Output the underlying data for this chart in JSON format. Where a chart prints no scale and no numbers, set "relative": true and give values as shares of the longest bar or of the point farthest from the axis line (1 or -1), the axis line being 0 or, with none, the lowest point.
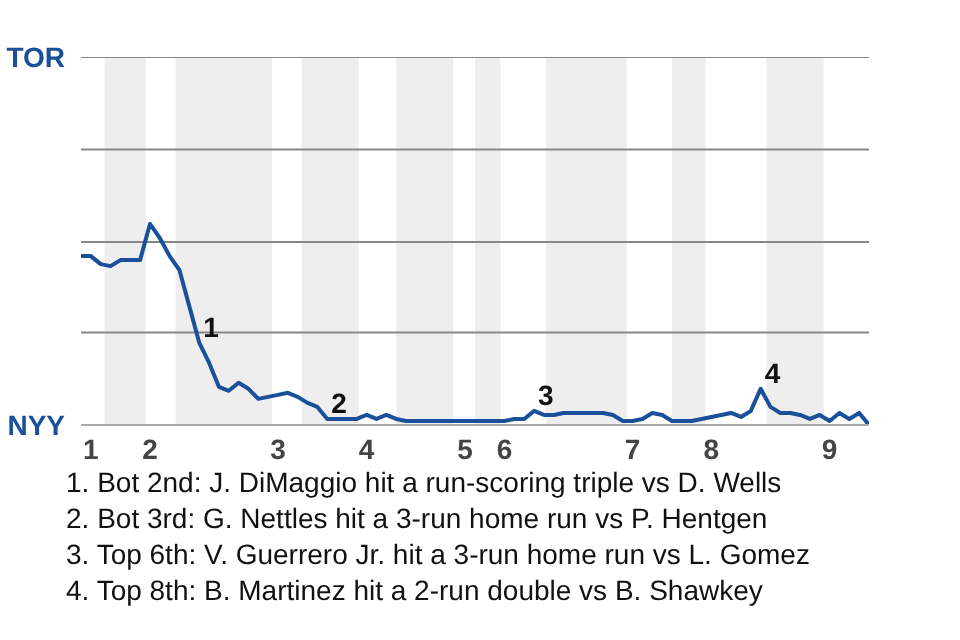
{
  "chart_data": {
    "type": "line",
    "relative": true,
    "categories": [
      null,
      "1",
      null,
      null,
      null,
      null,
      null,
      "2",
      null,
      null,
      null,
      null,
      null,
      null,
      null,
      null,
      null,
      null,
      null,
      null,
      "3",
      null,
      null,
      null,
      null,
      null,
      null,
      null,
      null,
      "4",
      null,
      null,
      null,
      null,
      null,
      null,
      null,
      null,
      null,
      "5",
      null,
      null,
      null,
      "6",
      null,
      null,
      null,
      null,
      null,
      null,
      null,
      null,
      null,
      null,
      null,
      null,
      "7",
      null,
      null,
      null,
      null,
      null,
      null,
      null,
      "8",
      null,
      null,
      null,
      null,
      null,
      null,
      null,
      null,
      null,
      null,
      null,
      "9",
      null,
      null,
      null,
      null
    ],
    "series": [
      {
        "color": "#1a4f99",
        "values": [
          0.84,
          0.84,
          0.8,
          0.79,
          0.82,
          0.82,
          0.82,
          1.0,
          0.93,
          0.84,
          0.77,
          0.59,
          0.41,
          0.31,
          0.19,
          0.17,
          0.21,
          0.18,
          0.13,
          0.14,
          0.15,
          0.16,
          0.14,
          0.11,
          0.09,
          0.03,
          0.03,
          0.03,
          0.03,
          0.05,
          0.03,
          0.05,
          0.03,
          0.02,
          0.02,
          0.02,
          0.02,
          0.02,
          0.02,
          0.02,
          0.02,
          0.02,
          0.02,
          0.02,
          0.03,
          0.03,
          0.07,
          0.05,
          0.05,
          0.06,
          0.06,
          0.06,
          0.06,
          0.06,
          0.05,
          0.02,
          0.02,
          0.03,
          0.06,
          0.05,
          0.02,
          0.02,
          0.02,
          0.03,
          0.04,
          0.05,
          0.06,
          0.04,
          0.07,
          0.18,
          0.09,
          0.06,
          0.06,
          0.05,
          0.03,
          0.05,
          0.02,
          0.06,
          0.03,
          0.06,
          0
        ]
      }
    ],
    "marker": "none",
    "line_style": "solid",
    "ref_lines": [
      {
        "axis": "y",
        "value": 0.46,
        "color": "#888888"
      },
      {
        "axis": "y",
        "value": 0.91,
        "color": "#888888"
      },
      {
        "axis": "y",
        "value": 1.37,
        "color": "#888888"
      },
      {
        "axis": "y",
        "value": 1.83,
        "color": "#888888"
      }
    ],
    "annotations": [
      "TOR",
      "NYY",
      {
        "text": "1",
        "y": 0.41
      },
      {
        "text": "2",
        "y": 0.03
      },
      {
        "text": "3",
        "y": 0.07
      },
      {
        "text": "4",
        "y": 0.18
      },
      "1. Bot 2nd: J. DiMaggio hit a run-scoring triple vs D. Wells",
      "2. Bot 3rd: G. Nettles hit a 3-run home run vs P. Hentgen",
      "3. Top 6th: V. Guerrero Jr. hit a 3-run home run vs L. Gomez",
      "4. Top 8th: B. Martinez hit a 2-run double vs B. Shawkey"
    ]
  }
}
